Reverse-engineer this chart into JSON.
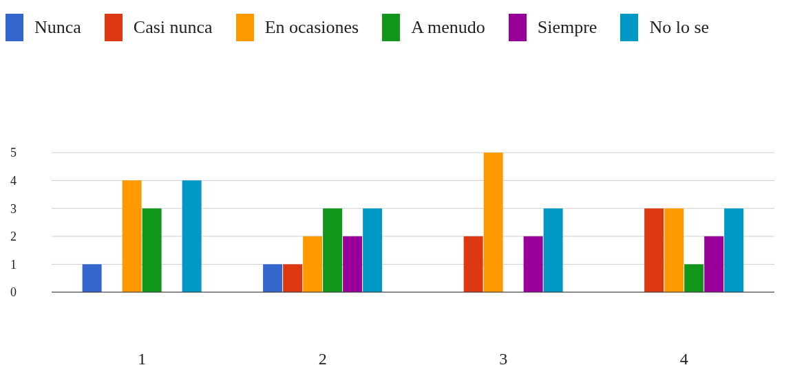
{
  "chart_data": {
    "type": "bar",
    "categories": [
      "1",
      "2",
      "3",
      "4"
    ],
    "series": [
      {
        "name": "Nunca",
        "color": "#3366cc",
        "values": [
          1,
          1,
          0,
          0
        ]
      },
      {
        "name": "Casi nunca",
        "color": "#dc3912",
        "values": [
          0,
          1,
          2,
          3
        ]
      },
      {
        "name": "En ocasiones",
        "color": "#ff9900",
        "values": [
          4,
          2,
          5,
          3
        ]
      },
      {
        "name": "A menudo",
        "color": "#109618",
        "values": [
          3,
          3,
          0,
          1
        ]
      },
      {
        "name": "Siempre",
        "color": "#990099",
        "values": [
          0,
          2,
          2,
          2
        ]
      },
      {
        "name": "No lo se",
        "color": "#0099c6",
        "values": [
          4,
          3,
          3,
          3
        ]
      }
    ],
    "ylim": [
      0,
      5
    ],
    "yticks": [
      0,
      1,
      2,
      3,
      4,
      5
    ],
    "grid": "y",
    "legend": "top"
  }
}
